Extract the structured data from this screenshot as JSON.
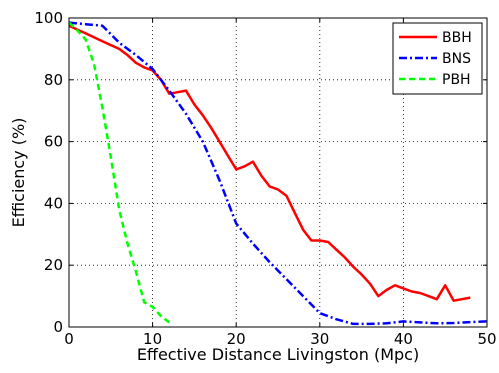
{
  "chart_data": {
    "type": "line",
    "title": "",
    "xlabel": "Effective Distance Livingston (Mpc)",
    "ylabel": "Efficiency (%)",
    "xlim": [
      0,
      50
    ],
    "ylim": [
      0,
      100
    ],
    "xticks": [
      0,
      10,
      20,
      30,
      40,
      50
    ],
    "yticks": [
      0,
      20,
      40,
      60,
      80,
      100
    ],
    "grid": true,
    "legend_position": "top-right",
    "series": [
      {
        "name": "BBH",
        "color": "#ff0000",
        "style": "solid",
        "x": [
          0,
          2,
          4,
          6,
          7,
          8,
          9,
          10,
          11,
          12,
          13,
          14,
          15,
          16,
          17,
          18,
          19,
          20,
          21,
          22,
          23,
          24,
          25,
          26,
          27,
          28,
          29,
          30,
          31,
          32,
          33,
          34,
          35,
          36,
          37,
          38,
          39,
          40,
          41,
          42,
          43,
          44,
          45,
          46,
          47,
          48
        ],
        "y": [
          97.5,
          95,
          92.5,
          90,
          88,
          85.5,
          84,
          83,
          80,
          75.5,
          76,
          76.5,
          72,
          68.5,
          64.5,
          60,
          55.5,
          51,
          52,
          53.5,
          49,
          45.5,
          44.5,
          42.5,
          37,
          31.5,
          28,
          28,
          27.5,
          25,
          22.5,
          19.5,
          17,
          14,
          10,
          12,
          13.5,
          12.5,
          11.5,
          11,
          10,
          9,
          13.5,
          8.5,
          9,
          9.5
        ]
      },
      {
        "name": "BNS",
        "color": "#0000ff",
        "style": "dashdot",
        "x": [
          0,
          2,
          4,
          6,
          8,
          10,
          12,
          14,
          16,
          18,
          20,
          22,
          24,
          26,
          28,
          30,
          32,
          34,
          36,
          38,
          40,
          42,
          44,
          46,
          48,
          50
        ],
        "y": [
          98.5,
          98,
          97.5,
          92,
          88,
          83.5,
          76.5,
          69,
          60,
          47.5,
          33.5,
          27,
          21,
          15.5,
          10,
          4.5,
          2.5,
          1,
          1,
          1.2,
          1.8,
          1.5,
          1.2,
          1.3,
          1.6,
          1.8
        ]
      },
      {
        "name": "PBH",
        "color": "#00ff00",
        "style": "dashed",
        "x": [
          0,
          1,
          2,
          3,
          4,
          5,
          6,
          7,
          8,
          9,
          10,
          11,
          12
        ],
        "y": [
          98.5,
          96,
          93,
          85,
          71,
          55,
          38,
          27,
          18,
          8,
          6.5,
          3.5,
          1.5
        ]
      }
    ]
  }
}
